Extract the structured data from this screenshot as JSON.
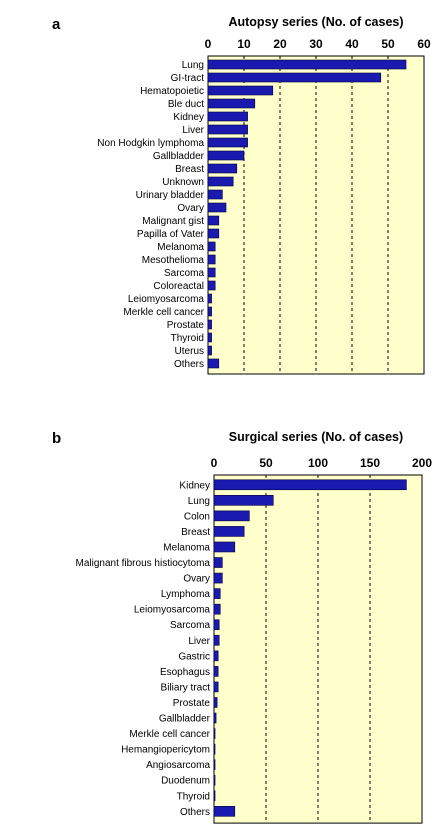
{
  "chart_data": [
    {
      "type": "bar",
      "orientation": "horizontal",
      "panel_label": "a",
      "title": "Autopsy series (No. of cases)",
      "xlim": [
        0,
        60
      ],
      "xticks": [
        0,
        10,
        20,
        30,
        40,
        50,
        60
      ],
      "x_axis_position": "top",
      "grid": "vertical dashed",
      "plot_background": "#FFFFCC",
      "bar_color": "#1A1AB0",
      "categories": [
        "Lung",
        "GI-tract",
        "Hematopoietic",
        "Ble duct",
        "Kidney",
        "Liver",
        "Non Hodgkin lymphoma",
        "Gallbladder",
        "Breast",
        "Unknown",
        "Urinary bladder",
        "Ovary",
        "Malignant gist",
        "Papilla of Vater",
        "Melanoma",
        "Mesothelioma",
        "Sarcoma",
        "Coloreactal",
        "Leiomyosarcoma",
        "Merkle cell cancer",
        "Prostate",
        "Thyroid",
        "Uterus",
        "Others"
      ],
      "values": [
        55,
        48,
        18,
        13,
        11,
        11,
        11,
        10,
        8,
        7,
        4,
        5,
        3,
        3,
        2,
        2,
        2,
        2,
        1,
        1,
        1,
        1,
        1,
        3
      ]
    },
    {
      "type": "bar",
      "orientation": "horizontal",
      "panel_label": "b",
      "title": "Surgical series (No. of cases)",
      "xlim": [
        0,
        200
      ],
      "xticks": [
        0,
        50,
        100,
        150,
        200
      ],
      "x_axis_position": "top",
      "grid": "vertical dashed",
      "plot_background": "#FFFFCC",
      "bar_color": "#1A1AB0",
      "categories": [
        "Kidney",
        "Lung",
        "Colon",
        "Breast",
        "Melanoma",
        "Malignant fibrous histiocytoma",
        "Ovary",
        "Lymphoma",
        "Leiomyosarcoma",
        "Sarcoma",
        "Liver",
        "Gastric",
        "Esophagus",
        "Biliary tract",
        "Prostate",
        "Gallbladder",
        "Merkle cell cancer",
        "Hemangiopericytom",
        "Angiosarcoma",
        "Duodenum",
        "Thyroid",
        "Others"
      ],
      "values": [
        185,
        57,
        34,
        29,
        20,
        8,
        8,
        6,
        6,
        5,
        5,
        4,
        4,
        4,
        3,
        2,
        1,
        1,
        1,
        1,
        1,
        20
      ]
    }
  ]
}
